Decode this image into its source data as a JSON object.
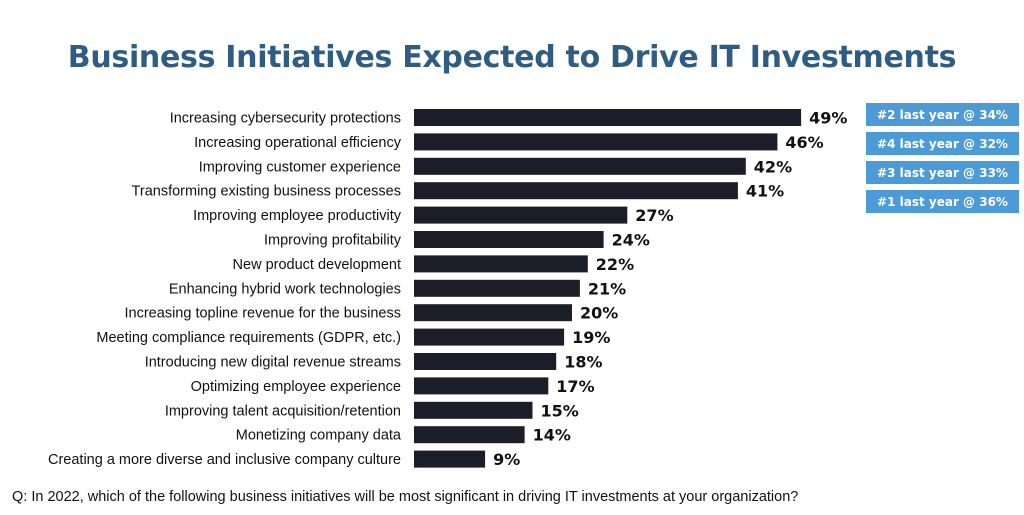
{
  "chart_data": {
    "type": "bar",
    "orientation": "horizontal",
    "title": "Business Initiatives Expected to Drive IT Investments",
    "categories": [
      "Increasing cybersecurity protections",
      "Increasing operational efficiency",
      "Improving customer experience",
      "Transforming existing business processes",
      "Improving employee productivity",
      "Improving profitability",
      "New product development",
      "Enhancing hybrid work technologies",
      "Increasing topline revenue for the business",
      "Meeting compliance requirements (GDPR, etc.)",
      "Introducing new digital revenue streams",
      "Optimizing employee experience",
      "Improving talent acquisition/retention",
      "Monetizing company data",
      "Creating a more diverse and inclusive company culture"
    ],
    "values": [
      49,
      46,
      42,
      41,
      27,
      24,
      22,
      21,
      20,
      19,
      18,
      17,
      15,
      14,
      9
    ],
    "value_labels": [
      "49%",
      "46%",
      "42%",
      "41%",
      "27%",
      "24%",
      "22%",
      "21%",
      "20%",
      "19%",
      "18%",
      "17%",
      "15%",
      "14%",
      "9%"
    ],
    "unit": "%",
    "xlim": [
      0,
      50
    ],
    "grid": false,
    "annotations": [
      "#2 last year @ 34%",
      "#4 last year @ 32%",
      "#3 last year @ 33%",
      "#1 last year @ 36%"
    ]
  },
  "footer": {
    "question": "Q: In 2022, which of the following business initiatives will be most significant in driving IT investments at your organization?"
  },
  "colors": {
    "title": "#2e5c82",
    "bar": "#1b1d28",
    "badge": "#4d9bd6"
  }
}
